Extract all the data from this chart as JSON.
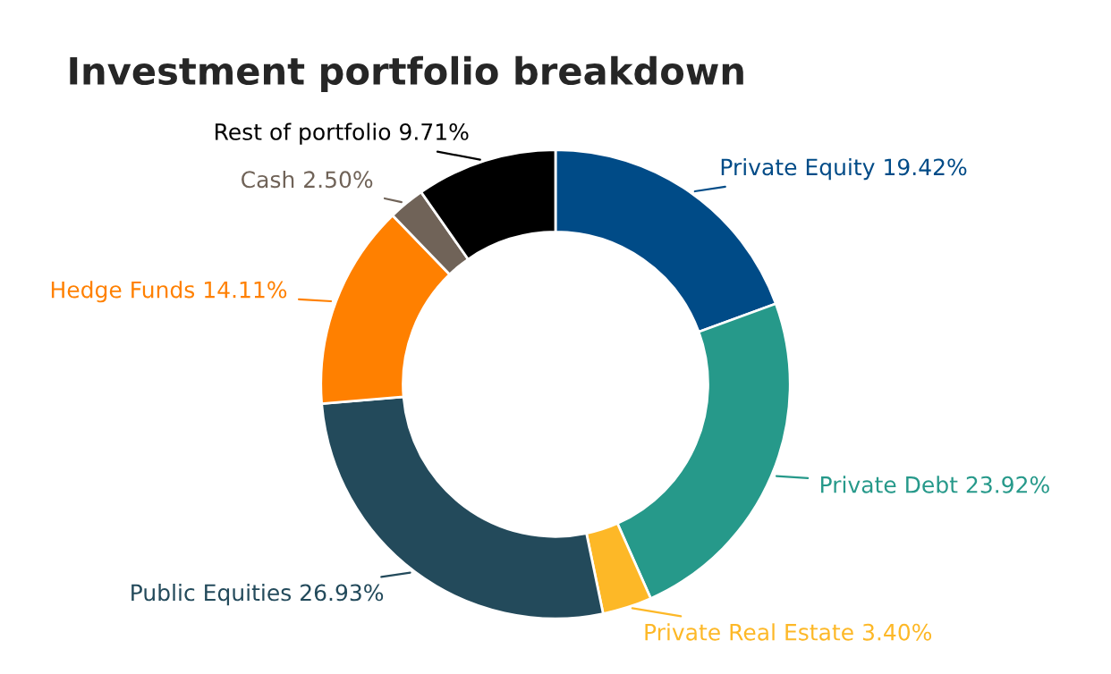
{
  "chart_data": {
    "type": "donut",
    "title": "Investment portfolio breakdown",
    "categories": [
      "Private Equity",
      "Private Debt",
      "Private Real Estate",
      "Public Equities",
      "Hedge Funds",
      "Cash",
      "Rest of portfolio"
    ],
    "values": [
      19.42,
      23.92,
      3.4,
      26.93,
      14.11,
      2.5,
      9.71
    ],
    "value_labels": [
      "19.42%",
      "23.92%",
      "3.40%",
      "26.93%",
      "14.11%",
      "2.50%",
      "9.71%"
    ],
    "colors": [
      "#004b87",
      "#26998a",
      "#fdb827",
      "#234a5b",
      "#ff8000",
      "#706358",
      "#000000"
    ],
    "legend": false
  }
}
